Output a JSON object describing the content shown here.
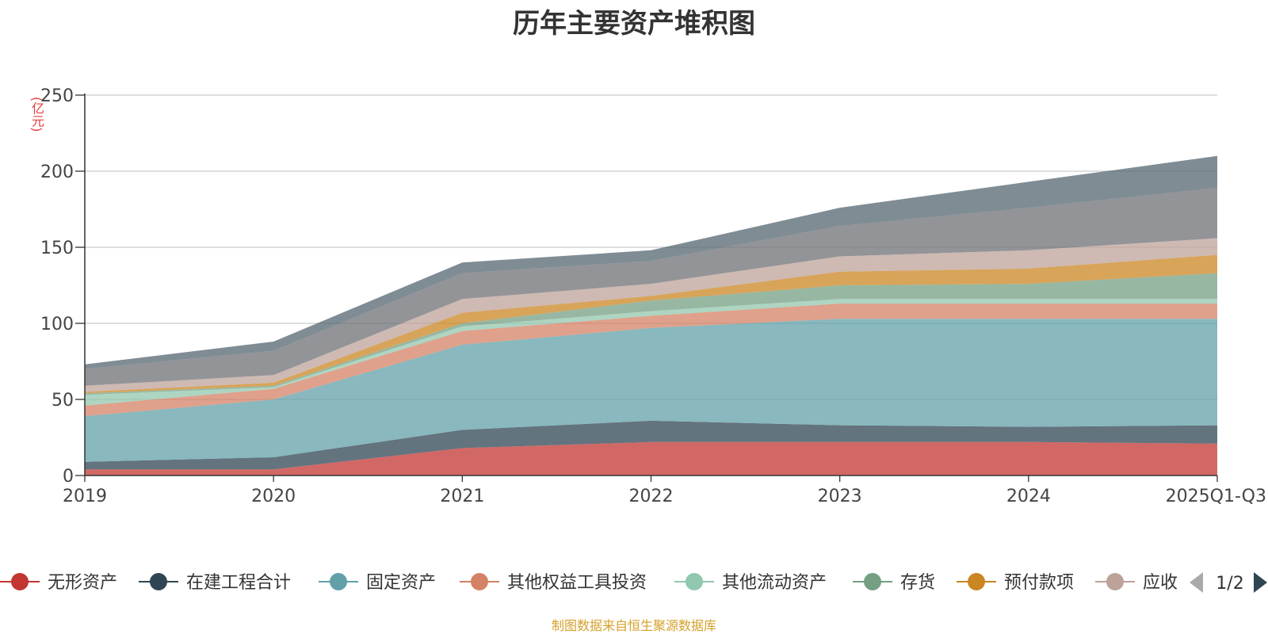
{
  "title": "历年主要资产堆积图",
  "footer": "制图数据来自恒生聚源数据库",
  "pager": {
    "text": "1/2",
    "prev_icon": "triangle-left-icon",
    "next_icon": "triangle-right-icon"
  },
  "chart_data": {
    "type": "area",
    "stacked": true,
    "title": "历年主要资产堆积图",
    "ylabel": "(亿元)",
    "ylim": [
      0,
      250
    ],
    "yticks": [
      0,
      50,
      100,
      150,
      200,
      250
    ],
    "grid": true,
    "legend_position": "bottom",
    "categories": [
      "2019",
      "2020",
      "2021",
      "2022",
      "2023",
      "2024",
      "2025Q1-Q3"
    ],
    "series": [
      {
        "name": "无形资产",
        "color": "#c23531",
        "values": [
          4,
          4,
          18,
          22,
          22,
          22,
          21
        ]
      },
      {
        "name": "在建工程合计",
        "color": "#2f4554",
        "values": [
          5,
          8,
          12,
          14,
          11,
          10,
          12
        ]
      },
      {
        "name": "固定资产",
        "color": "#61a0a8",
        "values": [
          30,
          38,
          56,
          61,
          70,
          71,
          70
        ]
      },
      {
        "name": "其他权益工具投资",
        "color": "#d48265",
        "values": [
          7,
          7,
          9,
          8,
          10,
          10,
          10
        ]
      },
      {
        "name": "其他流动资产",
        "color": "#91c7ae",
        "values": [
          7,
          1,
          3,
          3,
          3,
          3,
          3
        ]
      },
      {
        "name": "存货",
        "color": "#749f83",
        "values": [
          1,
          1,
          2,
          7,
          9,
          10,
          17
        ]
      },
      {
        "name": "预付款项",
        "color": "#ca8622",
        "values": [
          1,
          2,
          7,
          3,
          9,
          10,
          12
        ]
      },
      {
        "name": "应收",
        "color": "#bda29a",
        "values": [
          4,
          5,
          9,
          8,
          10,
          12,
          11
        ]
      },
      {
        "name": "",
        "color": "#6e7074",
        "values": [
          11,
          16,
          17,
          15,
          20,
          28,
          33
        ]
      },
      {
        "name": "",
        "color": "#546570",
        "values": [
          3,
          6,
          7,
          7,
          12,
          17,
          21
        ]
      }
    ]
  }
}
